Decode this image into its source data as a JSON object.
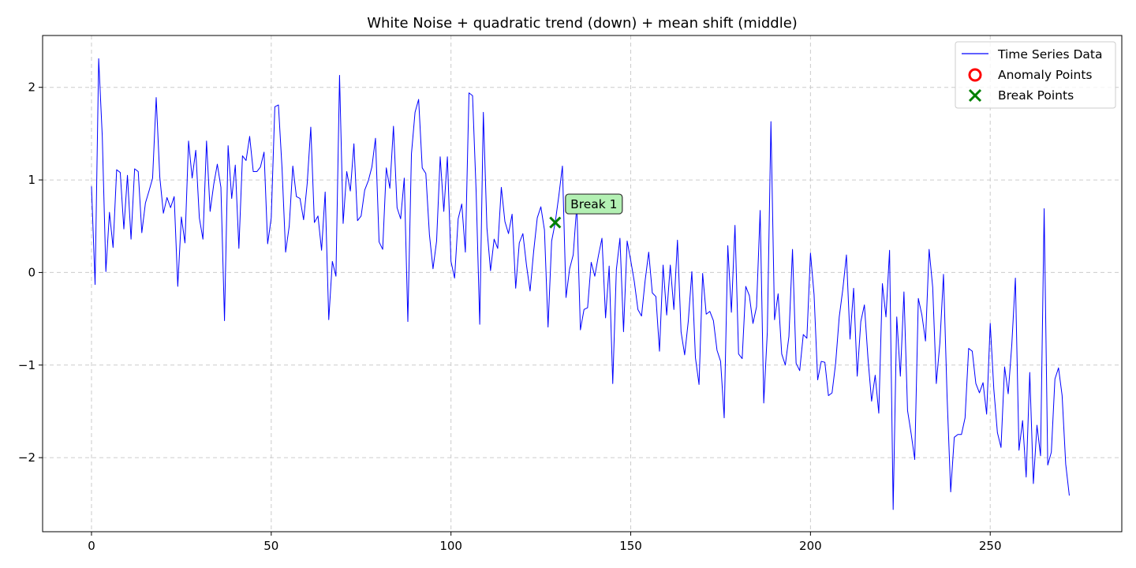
{
  "chart_data": {
    "type": "line",
    "title": "White Noise + quadratic trend (down) + mean shift (middle)",
    "xlabel": "",
    "ylabel": "",
    "xlim": [
      -13.6,
      286.6
    ],
    "ylim": [
      -2.8,
      2.56
    ],
    "x_ticks": [
      0,
      50,
      100,
      150,
      200,
      250
    ],
    "y_ticks": [
      -2,
      -1,
      0,
      1,
      2
    ],
    "x_tick_labels": [
      "0",
      "50",
      "100",
      "150",
      "200",
      "250"
    ],
    "y_tick_labels": [
      "−2",
      "−1",
      "0",
      "1",
      "2"
    ],
    "grid": true,
    "legend_position": "top-right",
    "colors": {
      "series": "#0000ff",
      "anomaly": "#ff0000",
      "break": "#008000",
      "annotation_bg": "#b3f0b3",
      "grid": "#cccccc"
    },
    "series": [
      {
        "name": "Time Series Data",
        "x_start": 0,
        "values": [
          0.93,
          -0.13,
          2.31,
          1.47,
          0.01,
          0.65,
          0.27,
          1.11,
          1.08,
          0.47,
          1.05,
          0.36,
          1.12,
          1.09,
          0.43,
          0.75,
          0.88,
          1.02,
          1.89,
          1.03,
          0.64,
          0.81,
          0.7,
          0.82,
          -0.15,
          0.6,
          0.32,
          1.42,
          1.02,
          1.32,
          0.59,
          0.36,
          1.42,
          0.66,
          0.95,
          1.17,
          0.92,
          -0.52,
          1.37,
          0.8,
          1.16,
          0.26,
          1.26,
          1.21,
          1.47,
          1.09,
          1.09,
          1.14,
          1.3,
          0.31,
          0.59,
          1.79,
          1.81,
          1.13,
          0.22,
          0.5,
          1.15,
          0.82,
          0.8,
          0.57,
          0.96,
          1.57,
          0.54,
          0.61,
          0.24,
          0.87,
          -0.51,
          0.12,
          -0.04,
          2.13,
          0.53,
          1.09,
          0.88,
          1.39,
          0.56,
          0.61,
          0.89,
          0.99,
          1.14,
          1.45,
          0.33,
          0.25,
          1.13,
          0.91,
          1.58,
          0.7,
          0.58,
          1.02,
          -0.53,
          1.28,
          1.73,
          1.87,
          1.13,
          1.07,
          0.41,
          0.04,
          0.34,
          1.25,
          0.66,
          1.25,
          0.12,
          -0.06,
          0.58,
          0.74,
          0.22,
          1.94,
          1.91,
          0.87,
          -0.56,
          1.73,
          0.48,
          0.02,
          0.36,
          0.26,
          0.92,
          0.55,
          0.42,
          0.63,
          -0.17,
          0.32,
          0.42,
          0.08,
          -0.2,
          0.23,
          0.59,
          0.71,
          0.46,
          -0.59,
          0.34,
          0.54,
          0.83,
          1.15,
          -0.27,
          0.04,
          0.19,
          0.73,
          -0.62,
          -0.4,
          -0.38,
          0.11,
          -0.04,
          0.18,
          0.37,
          -0.49,
          0.07,
          -1.2,
          0.03,
          0.37,
          -0.64,
          0.34,
          0.13,
          -0.1,
          -0.4,
          -0.47,
          -0.09,
          0.22,
          -0.22,
          -0.26,
          -0.85,
          0.08,
          -0.46,
          0.08,
          -0.4,
          0.35,
          -0.64,
          -0.89,
          -0.53,
          0.01,
          -0.92,
          -1.21,
          -0.01,
          -0.45,
          -0.42,
          -0.52,
          -0.84,
          -0.96,
          -1.57,
          0.29,
          -0.43,
          0.51,
          -0.88,
          -0.93,
          -0.15,
          -0.25,
          -0.55,
          -0.37,
          0.67,
          -1.41,
          -0.64,
          1.63,
          -0.51,
          -0.23,
          -0.88,
          -1.0,
          -0.69,
          0.25,
          -0.98,
          -1.06,
          -0.67,
          -0.71,
          0.21,
          -0.24,
          -1.16,
          -0.96,
          -0.97,
          -1.33,
          -1.3,
          -0.98,
          -0.48,
          -0.18,
          0.19,
          -0.72,
          -0.17,
          -1.12,
          -0.53,
          -0.35,
          -0.93,
          -1.39,
          -1.11,
          -1.52,
          -0.12,
          -0.48,
          0.24,
          -2.56,
          -0.48,
          -1.12,
          -0.21,
          -1.49,
          -1.74,
          -2.02,
          -0.28,
          -0.46,
          -0.74,
          0.25,
          -0.16,
          -1.2,
          -0.76,
          -0.02,
          -1.34,
          -2.37,
          -1.78,
          -1.75,
          -1.75,
          -1.57,
          -0.82,
          -0.85,
          -1.2,
          -1.3,
          -1.19,
          -1.53,
          -0.55,
          -1.26,
          -1.73,
          -1.89,
          -1.02,
          -1.31,
          -0.78,
          -0.06,
          -1.92,
          -1.6,
          -2.21,
          -1.08,
          -2.28,
          -1.65,
          -1.98,
          0.69,
          -2.08,
          -1.94,
          -1.15,
          -1.03,
          -1.33,
          -2.07,
          -2.41
        ]
      }
    ],
    "anomaly_points": [],
    "break_points": [
      {
        "x": 129,
        "y": 0.54
      }
    ],
    "legend": {
      "line": "Time Series Data",
      "anomaly": "Anomaly Points",
      "break": "Break Points"
    },
    "annotations": [
      {
        "text": "Break 1",
        "x": 129,
        "y": 0.54
      }
    ]
  }
}
